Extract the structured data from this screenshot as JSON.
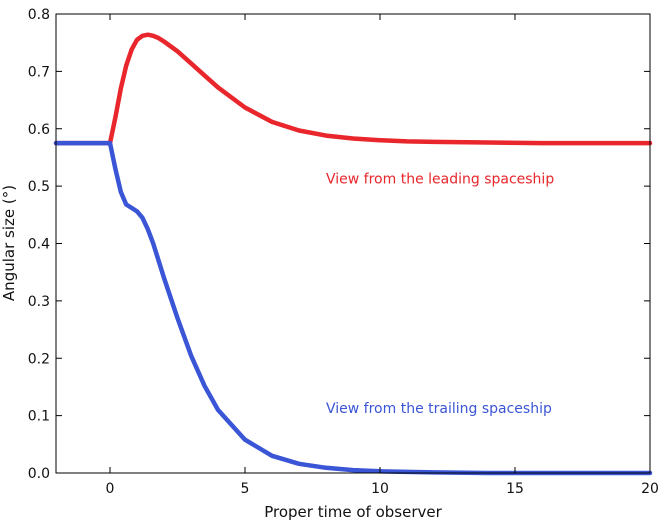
{
  "chart_data": {
    "type": "line",
    "title": "",
    "xlabel": "Proper time of observer",
    "ylabel": "Angular size (°)",
    "xlim": [
      -2,
      20
    ],
    "ylim": [
      0.0,
      0.8
    ],
    "x_ticks": [
      0,
      5,
      10,
      15,
      20
    ],
    "y_ticks": [
      0.0,
      0.1,
      0.2,
      0.3,
      0.4,
      0.5,
      0.6,
      0.7,
      0.8
    ],
    "x_tick_labels": [
      "0",
      "5",
      "10",
      "15",
      "20"
    ],
    "y_tick_labels": [
      "0.0",
      "0.1",
      "0.2",
      "0.3",
      "0.4",
      "0.5",
      "0.6",
      "0.7",
      "0.8"
    ],
    "grid": false,
    "series": [
      {
        "color": "#e8262b",
        "x": [
          -2,
          0,
          0.2,
          0.4,
          0.6,
          0.8,
          1.0,
          1.2,
          1.4,
          1.6,
          1.8,
          2.0,
          2.5,
          3.0,
          3.5,
          4.0,
          5.0,
          6.0,
          7.0,
          8.0,
          9.0,
          10.0,
          11.0,
          12.0,
          14.0,
          16.0,
          18.0,
          20.0
        ],
        "y": [
          0.575,
          0.575,
          0.62,
          0.67,
          0.71,
          0.738,
          0.755,
          0.762,
          0.764,
          0.762,
          0.758,
          0.752,
          0.735,
          0.714,
          0.693,
          0.672,
          0.637,
          0.612,
          0.597,
          0.588,
          0.583,
          0.58,
          0.578,
          0.577,
          0.576,
          0.575,
          0.575,
          0.575
        ]
      },
      {
        "color": "#3a55d6",
        "x": [
          -2,
          0,
          0.2,
          0.4,
          0.6,
          0.8,
          1.0,
          1.2,
          1.4,
          1.6,
          1.8,
          2.0,
          2.5,
          3.0,
          3.5,
          4.0,
          5.0,
          6.0,
          7.0,
          8.0,
          9.0,
          10.0,
          11.0,
          12.0,
          14.0,
          16.0,
          18.0,
          20.0
        ],
        "y": [
          0.575,
          0.575,
          0.53,
          0.49,
          0.468,
          0.462,
          0.456,
          0.445,
          0.425,
          0.4,
          0.37,
          0.34,
          0.27,
          0.205,
          0.152,
          0.11,
          0.058,
          0.03,
          0.016,
          0.009,
          0.005,
          0.003,
          0.002,
          0.001,
          0.0,
          0.0,
          0.0,
          0.0
        ]
      }
    ],
    "annotations": [
      {
        "text": "View from the leading spaceship",
        "x": 8.0,
        "y": 0.505,
        "color": "#e8262b"
      },
      {
        "text": "View from the trailing spaceship",
        "x": 8.0,
        "y": 0.105,
        "color": "#3a55d6"
      }
    ]
  }
}
